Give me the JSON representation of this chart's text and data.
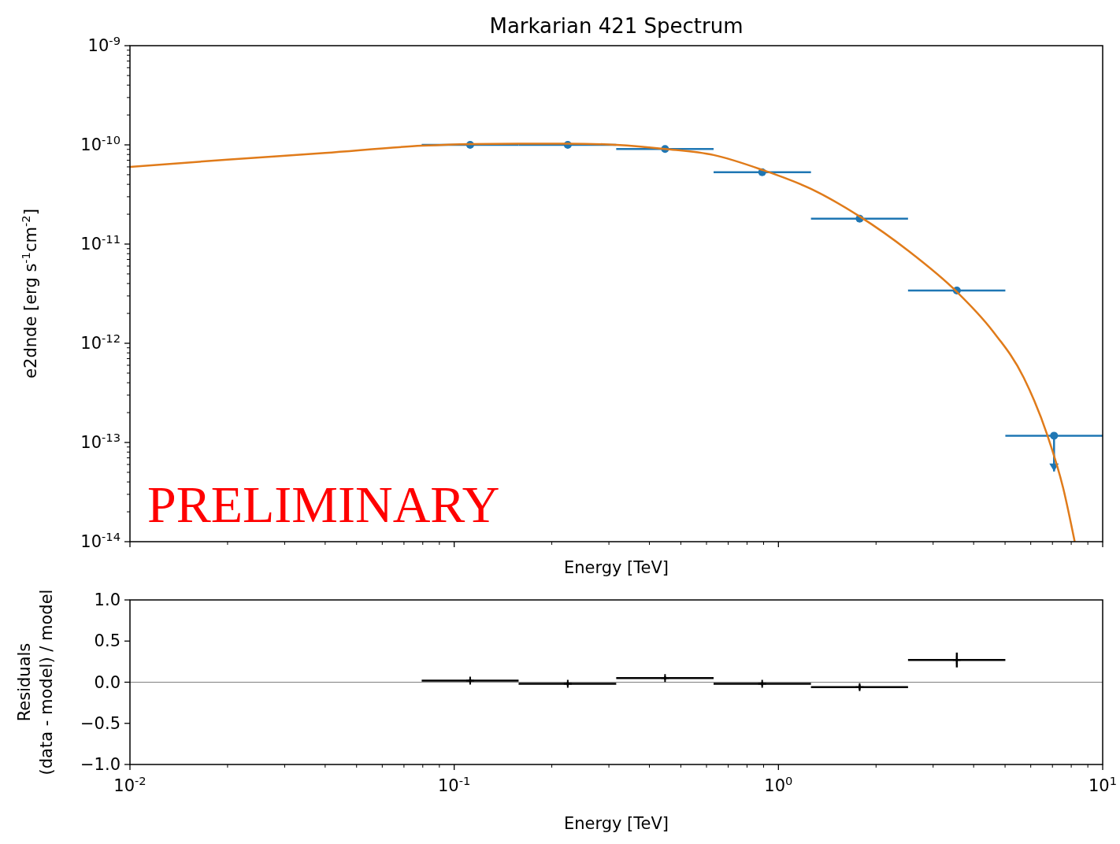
{
  "chart_data": [
    {
      "type": "scatter",
      "title": "Markarian 421 Spectrum",
      "xlabel": "Energy [TeV]",
      "ylabel": "e2dnde [erg s$^{-1}$cm$^{-2}$]",
      "log": "xy",
      "tick_labels": "y",
      "xlim": [
        0.01,
        10
      ],
      "ylim": [
        1e-14,
        1e-09
      ],
      "xticks": [
        {
          "value": 0.01,
          "label": null
        },
        {
          "value": 0.1,
          "label": null
        },
        {
          "value": 1,
          "label": null
        },
        {
          "value": 10,
          "label": null
        }
      ],
      "yticks": [
        {
          "value": 1e-14,
          "label": "10$^{-14}$"
        },
        {
          "value": 1e-13,
          "label": "10$^{-13}$"
        },
        {
          "value": 1e-12,
          "label": "10$^{-12}$"
        },
        {
          "value": 1e-11,
          "label": "10$^{-11}$"
        },
        {
          "value": 1e-10,
          "label": "10$^{-10}$"
        },
        {
          "value": 1e-09,
          "label": "10$^{-9}$"
        }
      ],
      "annotations": [
        "PRELIMINARY"
      ],
      "series": [
        {
          "marker": "circle",
          "color": "#1f77b4",
          "x": [
            0.112,
            0.224,
            0.447,
            0.891,
            1.78,
            3.55,
            7.08
          ],
          "values": [
            1e-10,
            1e-10,
            9.1e-11,
            5.3e-11,
            1.8e-11,
            3.4e-12,
            1.17e-13
          ],
          "xerrors": [
            [
              0.0794,
              0.158
            ],
            [
              0.158,
              0.316
            ],
            [
              0.316,
              0.631
            ],
            [
              0.631,
              1.26
            ],
            [
              1.26,
              2.51
            ],
            [
              2.51,
              5.01
            ],
            [
              5.01,
              10
            ]
          ],
          "errors": [
            null,
            null,
            null,
            null,
            null,
            null,
            [
              5.1e-14,
              1.17e-13
            ]
          ]
        },
        {
          "type": "line",
          "color": "#e07b1a",
          "x": [
            0.01,
            0.02,
            0.04,
            0.0796,
            0.112,
            0.158,
            0.224,
            0.316,
            0.447,
            0.631,
            0.891,
            1.26,
            1.78,
            2.51,
            3.55,
            4.57,
            5.71,
            6.76,
            7.55,
            8.2
          ],
          "values": [
            6e-11,
            7.1e-11,
            8.3e-11,
            9.8e-11,
            1.02e-10,
            1.03e-10,
            1.03e-10,
            1e-10,
            9.1e-11,
            7.9e-11,
            5.6e-11,
            3.6e-11,
            1.9e-11,
            8.6e-12,
            3.3e-12,
            1.34e-12,
            4.5e-13,
            1.17e-13,
            3.5e-14,
            1e-14
          ]
        }
      ]
    },
    {
      "type": "scatter",
      "xlabel": "Energy [TeV]",
      "ylabel": "Residuals\n(data - model) / model",
      "log": "x",
      "marker": "cross",
      "xlim": [
        0.01,
        10
      ],
      "ylim": [
        -1,
        1
      ],
      "xticks": [
        {
          "value": 0.01,
          "label": "10$^{-2}$"
        },
        {
          "value": 0.1,
          "label": "10$^{-1}$"
        },
        {
          "value": 1,
          "label": "10$^{0}$"
        },
        {
          "value": 10,
          "label": "10$^{1}$"
        }
      ],
      "yticks": [
        {
          "value": -1,
          "label": "−1.0"
        },
        {
          "value": -0.5,
          "label": "−0.5"
        },
        {
          "value": 0,
          "label": "0.0"
        },
        {
          "value": 0.5,
          "label": "0.5"
        },
        {
          "value": 1,
          "label": "1.0"
        }
      ],
      "ref_lines": [
        {
          "axis": "y",
          "value": 0,
          "color": "#808080"
        }
      ],
      "series": [
        {
          "color": "#000000",
          "x": [
            0.112,
            0.224,
            0.447,
            0.891,
            1.78,
            3.55
          ],
          "values": [
            0.02,
            -0.02,
            0.05,
            -0.02,
            -0.06,
            0.27
          ],
          "xerrors": [
            [
              0.0794,
              0.158
            ],
            [
              0.158,
              0.316
            ],
            [
              0.316,
              0.631
            ],
            [
              0.631,
              1.26
            ],
            [
              1.26,
              2.51
            ],
            [
              2.51,
              5.01
            ]
          ],
          "errors": [
            0.02,
            0.02,
            0.02,
            0.02,
            0.03,
            0.09
          ]
        }
      ]
    }
  ]
}
